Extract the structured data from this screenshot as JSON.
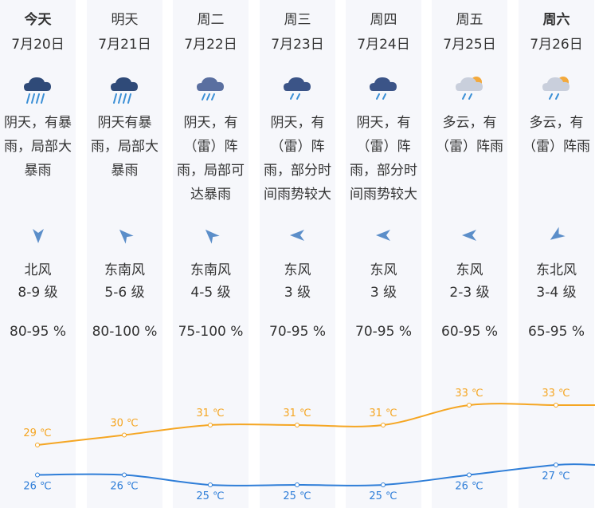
{
  "colors": {
    "high": "#f5a623",
    "low": "#2f7ed8",
    "column_bg": "#f6f7fb"
  },
  "days": [
    {
      "day": "今天",
      "date": "7月20日",
      "icon": "heavy-rain-icon",
      "desc": [
        "阴天，有暴",
        "雨，局部大",
        "暴雨"
      ],
      "wind_dir": "北风",
      "wind_level": "8-9 级",
      "humidity": "80-95 %"
    },
    {
      "day": "明天",
      "date": "7月21日",
      "icon": "heavy-rain-icon",
      "desc": [
        "阴天有暴",
        "雨，局部大",
        "暴雨"
      ],
      "wind_dir": "东南风",
      "wind_level": "5-6 级",
      "humidity": "80-100 %"
    },
    {
      "day": "周二",
      "date": "7月22日",
      "icon": "thunder-shower-icon",
      "desc": [
        "阴天，有",
        "（雷）阵",
        "雨，局部可",
        "达暴雨"
      ],
      "wind_dir": "东南风",
      "wind_level": "4-5 级",
      "humidity": "75-100 %"
    },
    {
      "day": "周三",
      "date": "7月23日",
      "icon": "shower-icon",
      "desc": [
        "阴天，有",
        "（雷）阵",
        "雨，部分时",
        "间雨势较大"
      ],
      "wind_dir": "东风",
      "wind_level": "3 级",
      "humidity": "70-95 %"
    },
    {
      "day": "周四",
      "date": "7月24日",
      "icon": "shower-icon",
      "desc": [
        "阴天，有",
        "（雷）阵",
        "雨，部分时",
        "间雨势较大"
      ],
      "wind_dir": "东风",
      "wind_level": "3 级",
      "humidity": "70-95 %"
    },
    {
      "day": "周五",
      "date": "7月25日",
      "icon": "partly-cloudy-rain-icon",
      "desc": [
        "多云，有",
        "（雷）阵雨"
      ],
      "wind_dir": "东风",
      "wind_level": "2-3 级",
      "humidity": "60-95 %"
    },
    {
      "day": "周六",
      "date": "7月26日",
      "icon": "partly-cloudy-rain-icon",
      "desc": [
        "多云，有",
        "（雷）阵雨"
      ],
      "wind_dir": "东北风",
      "wind_level": "3-4 级",
      "humidity": "65-95 %"
    }
  ],
  "chart_data": {
    "type": "line",
    "categories": [
      "7月20日",
      "7月21日",
      "7月22日",
      "7月23日",
      "7月24日",
      "7月25日",
      "7月26日"
    ],
    "series": [
      {
        "values": [
          29,
          30,
          31,
          31,
          31,
          33,
          33
        ],
        "labels": [
          "29 ℃",
          "30 ℃",
          "31 ℃",
          "31 ℃",
          "31 ℃",
          "33 ℃",
          "33 ℃"
        ],
        "color": "#f5a623"
      },
      {
        "values": [
          26,
          26,
          25,
          25,
          25,
          26,
          27
        ],
        "labels": [
          "26 ℃",
          "26 ℃",
          "25 ℃",
          "25 ℃",
          "25 ℃",
          "26 ℃",
          "27 ℃"
        ],
        "color": "#2f7ed8"
      }
    ]
  }
}
